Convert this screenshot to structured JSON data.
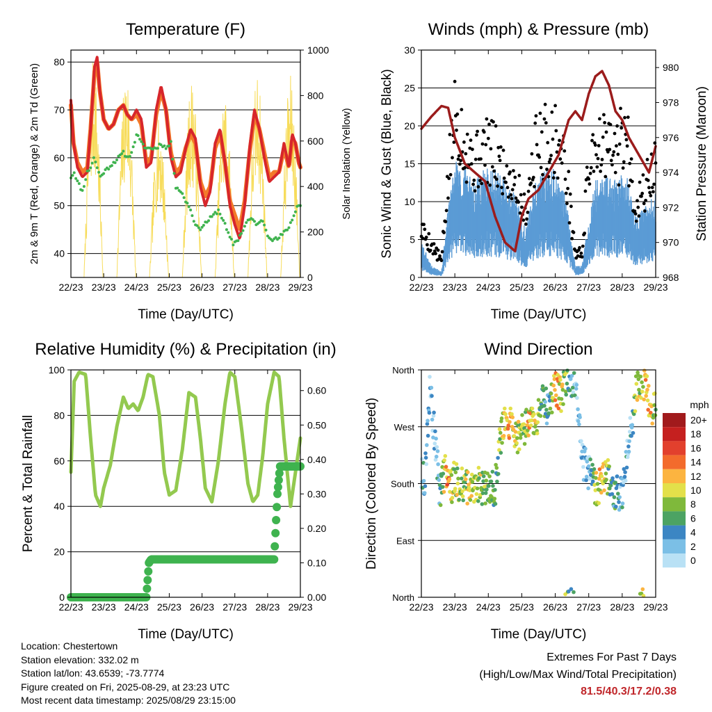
{
  "time_axis": {
    "label": "Time (Day/UTC)",
    "ticks": [
      "22/23",
      "23/23",
      "24/23",
      "25/23",
      "26/23",
      "27/23",
      "28/23",
      "29/23"
    ]
  },
  "chart_data": [
    {
      "id": "temperature",
      "type": "line",
      "title": "Temperature (F)",
      "xlabel": "Time (Day/UTC)",
      "ylabel": "2m & 9m T (Red, Orange) & 2m Td (Green)",
      "y2label": "Solar Insolation (Yellow)",
      "x_unit": "days since 22/23",
      "xlim": [
        0,
        7
      ],
      "ylim": [
        35,
        82.5
      ],
      "y2lim": [
        0,
        1000
      ],
      "yticks": [
        40,
        50,
        60,
        70,
        80
      ],
      "y2ticks": [
        0,
        200,
        400,
        600,
        800,
        1000
      ],
      "grid": true,
      "series": [
        {
          "name": "2m T",
          "color": "#d7262b",
          "axis": "left",
          "x": [
            0,
            0.08,
            0.2,
            0.35,
            0.5,
            0.6,
            0.72,
            0.8,
            0.88,
            1.0,
            1.15,
            1.3,
            1.45,
            1.6,
            1.72,
            1.85,
            2.0,
            2.15,
            2.3,
            2.45,
            2.6,
            2.75,
            2.9,
            3.05,
            3.2,
            3.35,
            3.5,
            3.65,
            3.8,
            3.95,
            4.1,
            4.25,
            4.4,
            4.55,
            4.7,
            4.85,
            5.0,
            5.15,
            5.3,
            5.45,
            5.6,
            5.75,
            5.9,
            6.05,
            6.2,
            6.35,
            6.5,
            6.65,
            6.75,
            6.85,
            6.95,
            7.0
          ],
          "values": [
            72,
            63,
            58,
            56,
            57,
            66,
            79,
            81,
            74,
            68,
            66,
            67,
            70,
            71,
            69,
            68,
            70,
            68,
            58,
            59,
            70,
            75,
            70,
            60,
            56,
            57,
            62,
            66,
            64,
            54,
            50,
            53,
            63,
            66,
            59,
            50,
            46,
            43,
            50,
            62,
            70,
            66,
            60,
            55,
            56,
            57,
            63,
            58,
            65,
            63,
            59,
            58
          ]
        },
        {
          "name": "9m T",
          "color": "#f37a2a",
          "axis": "left",
          "x": [
            0,
            0.08,
            0.2,
            0.35,
            0.5,
            0.6,
            0.72,
            0.8,
            0.88,
            1.0,
            1.15,
            1.3,
            1.45,
            1.6,
            1.72,
            1.85,
            2.0,
            2.15,
            2.3,
            2.45,
            2.6,
            2.75,
            2.9,
            3.05,
            3.2,
            3.35,
            3.5,
            3.65,
            3.8,
            3.95,
            4.1,
            4.25,
            4.4,
            4.55,
            4.7,
            4.85,
            5.0,
            5.15,
            5.3,
            5.45,
            5.6,
            5.75,
            5.9,
            6.05,
            6.2,
            6.35,
            6.5,
            6.65,
            6.75,
            6.85,
            6.95,
            7.0
          ],
          "values": [
            71,
            63,
            59,
            57,
            58,
            66,
            78,
            80,
            74,
            68,
            66,
            67,
            70,
            71,
            69,
            68,
            69,
            67,
            59,
            60,
            69,
            74,
            70,
            61,
            57,
            58,
            62,
            65,
            63,
            55,
            52,
            54,
            62,
            65,
            59,
            51,
            48,
            45,
            51,
            61,
            69,
            66,
            61,
            56,
            57,
            57,
            62,
            58,
            64,
            63,
            59,
            58
          ]
        },
        {
          "name": "2m Td",
          "color": "#3fb34f",
          "axis": "left",
          "x": [
            0,
            0.1,
            0.2,
            0.35,
            0.5,
            0.6,
            0.7,
            0.8,
            0.9,
            1.0,
            1.15,
            1.3,
            1.45,
            1.6,
            1.75,
            1.9,
            2.0,
            2.15,
            2.3,
            2.45,
            2.6,
            2.75,
            2.9,
            3.05,
            3.2,
            3.35,
            3.5,
            3.6,
            3.75,
            3.9,
            4.05,
            4.2,
            4.35,
            4.5,
            4.65,
            4.8,
            4.95,
            5.1,
            5.25,
            5.4,
            5.55,
            5.7,
            5.85,
            6.0,
            6.15,
            6.3,
            6.45,
            6.6,
            6.75,
            6.9,
            7.0
          ],
          "values": [
            56,
            57,
            55,
            53,
            57,
            58,
            60,
            58,
            56,
            57,
            58,
            59,
            60,
            61,
            60,
            62,
            65,
            63,
            62,
            62,
            62,
            63,
            62,
            63,
            54,
            53,
            51,
            50,
            47,
            45,
            46,
            47,
            48,
            49,
            47,
            44,
            42,
            43,
            45,
            47,
            47,
            46,
            47,
            44,
            43,
            43,
            44,
            45,
            47,
            50,
            50
          ]
        },
        {
          "name": "Solar Insolation",
          "color": "#f7dc5b",
          "axis": "right",
          "peak_by_day": [
            960,
            920,
            700,
            880,
            820,
            900,
            890
          ]
        }
      ]
    },
    {
      "id": "winds",
      "type": "scatter",
      "title": "Winds (mph) & Pressure (mb)",
      "xlabel": "Time (Day/UTC)",
      "ylabel": "Sonic Wind & Gust (Blue, Black)",
      "y2label": "Station Pressure (Maroon)",
      "x_unit": "days since 22/23",
      "xlim": [
        0,
        7
      ],
      "ylim": [
        0,
        30
      ],
      "y2lim": [
        968,
        981
      ],
      "yticks": [
        0,
        5,
        10,
        15,
        20,
        25,
        30
      ],
      "y2ticks": [
        968,
        970,
        972,
        974,
        976,
        978,
        980
      ],
      "grid": true,
      "series": [
        {
          "name": "Sonic Wind",
          "color": "#5b9bd5",
          "axis": "left",
          "x": [
            0,
            0.3,
            0.6,
            0.8,
            1.0,
            1.3,
            1.6,
            1.9,
            2.2,
            2.5,
            2.8,
            3.1,
            3.4,
            3.7,
            4.0,
            4.3,
            4.6,
            4.8,
            5.0,
            5.2,
            5.5,
            5.8,
            6.1,
            6.4,
            6.7,
            7.0
          ],
          "values": [
            3,
            1,
            0.5,
            6,
            10,
            9,
            8,
            9,
            9,
            8,
            7,
            4,
            8,
            9,
            9,
            7,
            1,
            1,
            5,
            8,
            9,
            8,
            9,
            5,
            6,
            7
          ]
        },
        {
          "name": "Gust",
          "color": "#000000",
          "axis": "left",
          "x": [
            0,
            0.3,
            0.6,
            0.8,
            1.0,
            1.3,
            1.6,
            1.9,
            2.2,
            2.5,
            2.8,
            3.1,
            3.4,
            3.7,
            4.0,
            4.3,
            4.6,
            4.8,
            5.0,
            5.2,
            5.5,
            5.8,
            6.1,
            6.4,
            6.7,
            7.0
          ],
          "values": [
            6,
            4,
            2,
            12,
            20,
            17,
            14,
            16,
            15,
            13,
            12,
            8,
            16,
            17,
            17,
            14,
            3,
            3,
            14,
            17,
            16,
            15,
            18,
            9,
            11,
            14
          ]
        },
        {
          "name": "Station Pressure",
          "color": "#9b1c1c",
          "axis": "right",
          "x": [
            0,
            0.3,
            0.6,
            0.8,
            1.0,
            1.3,
            1.6,
            1.9,
            2.2,
            2.5,
            2.8,
            3.0,
            3.2,
            3.5,
            3.8,
            4.1,
            4.4,
            4.6,
            4.8,
            5.0,
            5.2,
            5.4,
            5.6,
            5.8,
            6.0,
            6.2,
            6.5,
            6.8,
            7.0
          ],
          "values": [
            976.5,
            977.2,
            977.8,
            977.7,
            976.0,
            974.5,
            974.0,
            973.5,
            971.5,
            970.0,
            969.5,
            971.5,
            972.5,
            973.0,
            974.0,
            975.0,
            977.0,
            977.5,
            977.0,
            978.5,
            979.5,
            979.8,
            979.0,
            977.5,
            977.0,
            976.0,
            975.0,
            974.0,
            975.5
          ]
        }
      ]
    },
    {
      "id": "humidity",
      "type": "line",
      "title": "Relative Humidity (%) & Precipitation (in)",
      "xlabel": "Time (Day/UTC)",
      "ylabel": "Percent & Total Rainfall",
      "x_unit": "days since 22/23",
      "xlim": [
        0,
        7
      ],
      "ylim": [
        0,
        100
      ],
      "y2lim": [
        0,
        0.66
      ],
      "yticks": [
        0,
        20,
        40,
        60,
        80,
        100
      ],
      "y2ticks": [
        "0.00",
        "0.10",
        "0.20",
        "0.30",
        "0.40",
        "0.50",
        "0.60"
      ],
      "grid": true,
      "series": [
        {
          "name": "Relative Humidity",
          "color": "#93c94f",
          "axis": "left",
          "x": [
            0,
            0.1,
            0.25,
            0.45,
            0.6,
            0.75,
            0.9,
            1.0,
            1.2,
            1.4,
            1.6,
            1.75,
            1.9,
            2.05,
            2.2,
            2.35,
            2.5,
            2.7,
            2.85,
            3.0,
            3.2,
            3.4,
            3.6,
            3.8,
            3.95,
            4.1,
            4.3,
            4.5,
            4.7,
            4.85,
            5.0,
            5.2,
            5.4,
            5.55,
            5.7,
            5.85,
            6.0,
            6.2,
            6.35,
            6.5,
            6.7,
            6.85,
            7.0
          ],
          "values": [
            55,
            95,
            99,
            98,
            70,
            45,
            40,
            48,
            58,
            75,
            88,
            83,
            85,
            82,
            88,
            98,
            97,
            80,
            55,
            45,
            47,
            65,
            90,
            88,
            70,
            48,
            42,
            60,
            85,
            99,
            97,
            75,
            50,
            42,
            45,
            62,
            85,
            99,
            97,
            70,
            40,
            55,
            70
          ]
        },
        {
          "name": "Total Precipitation",
          "color": "#3fb34f",
          "axis": "right",
          "x": [
            0,
            2.3,
            2.38,
            2.45,
            6.2,
            6.3,
            6.38,
            7.0
          ],
          "values": [
            0.0,
            0.0,
            0.1,
            0.11,
            0.11,
            0.3,
            0.38,
            0.38
          ]
        }
      ]
    },
    {
      "id": "wind-direction",
      "type": "scatter",
      "title": "Wind Direction",
      "xlabel": "Time (Day/UTC)",
      "ylabel": "Direction (Colored By Speed)",
      "x_unit": "days since 22/23",
      "xlim": [
        0,
        7
      ],
      "ylim": [
        0,
        360
      ],
      "yticks": [
        "North",
        "East",
        "South",
        "West",
        "North"
      ],
      "grid": true,
      "legend": {
        "title": "mph",
        "position": "right",
        "labels": [
          "0",
          "2",
          "4",
          "6",
          "8",
          "10",
          "12",
          "14",
          "16",
          "18",
          "20+"
        ],
        "colors": [
          "#b9e1f5",
          "#7bbfe6",
          "#3c86c3",
          "#4ca363",
          "#7fb93b",
          "#e3e04a",
          "#fcb440",
          "#f36b2c",
          "#e2402d",
          "#c5201f",
          "#a11a1c"
        ]
      },
      "series": [
        {
          "name": "Direction",
          "x": [
            0.1,
            0.25,
            0.4,
            0.55,
            0.7,
            0.8,
            0.9,
            1.0,
            1.2,
            1.4,
            1.6,
            1.8,
            2.0,
            2.2,
            2.4,
            2.6,
            2.8,
            3.0,
            3.2,
            3.4,
            3.6,
            3.8,
            4.0,
            4.2,
            4.4,
            4.6,
            4.8,
            5.0,
            5.2,
            5.4,
            5.6,
            5.8,
            6.0,
            6.2,
            6.4,
            6.6,
            6.8,
            6.95
          ],
          "direction_deg": [
            190,
            330,
            250,
            170,
            200,
            190,
            180,
            185,
            180,
            175,
            180,
            175,
            180,
            170,
            270,
            285,
            250,
            265,
            280,
            270,
            310,
            300,
            330,
            320,
            350,
            340,
            220,
            200,
            170,
            180,
            190,
            160,
            170,
            240,
            320,
            350,
            310,
            300
          ],
          "speed_mph": [
            3,
            1,
            2,
            4,
            12,
            14,
            10,
            9,
            8,
            10,
            9,
            8,
            7,
            6,
            8,
            12,
            10,
            7,
            11,
            10,
            6,
            4,
            12,
            11,
            4,
            3,
            1,
            2,
            9,
            12,
            7,
            5,
            3,
            2,
            9,
            10,
            12,
            8
          ]
        }
      ]
    }
  ],
  "footer": {
    "location": "Location: Chestertown",
    "elevation": "Station elevation: 332.02 m",
    "latlon": "Station lat/lon: 43.6539; -73.7774",
    "created": "Figure created on Fri, 2025-08-29, at 23:23 UTC",
    "recent": "Most recent data timestamp: 2025/08/29 23:15:00"
  },
  "extremes": {
    "title": "Extremes For Past 7 Days",
    "subtitle": "(High/Low/Max Wind/Total Precipitation)",
    "values": "81.5/40.3/17.2/0.38"
  }
}
